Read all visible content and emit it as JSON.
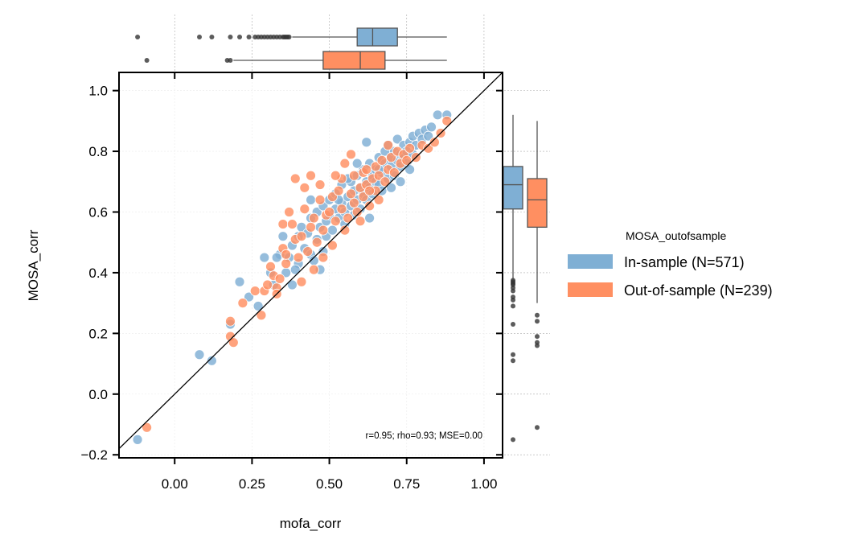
{
  "chart_data": {
    "type": "scatter",
    "xlabel": "mofa_corr",
    "ylabel": "MOSA_corr",
    "xlim": [
      -0.18,
      1.06
    ],
    "ylim": [
      -0.21,
      1.06
    ],
    "x_ticks": [
      0.0,
      0.25,
      0.5,
      0.75,
      1.0
    ],
    "x_tick_labels": [
      "0.00",
      "0.25",
      "0.50",
      "0.75",
      "1.00"
    ],
    "y_ticks": [
      -0.2,
      0.0,
      0.2,
      0.4,
      0.6,
      0.8,
      1.0
    ],
    "y_tick_labels": [
      "−0.2",
      "0.0",
      "0.2",
      "0.4",
      "0.6",
      "0.8",
      "1.0"
    ],
    "grid": true,
    "identity_line": true,
    "annotation": "r=0.95; rho=0.93; MSE=0.00",
    "legend": {
      "title": "MOSA_outofsample",
      "placement": "right"
    },
    "series": [
      {
        "name": "In-sample (N=571)",
        "color": "#7FAFD4",
        "n": 571,
        "points": [
          [
            -0.12,
            -0.15
          ],
          [
            0.08,
            0.13
          ],
          [
            0.12,
            0.11
          ],
          [
            0.18,
            0.23
          ],
          [
            0.21,
            0.37
          ],
          [
            0.24,
            0.32
          ],
          [
            0.27,
            0.29
          ],
          [
            0.29,
            0.45
          ],
          [
            0.31,
            0.4
          ],
          [
            0.32,
            0.36
          ],
          [
            0.34,
            0.46
          ],
          [
            0.35,
            0.52
          ],
          [
            0.36,
            0.4
          ],
          [
            0.37,
            0.45
          ],
          [
            0.38,
            0.49
          ],
          [
            0.38,
            0.36
          ],
          [
            0.4,
            0.43
          ],
          [
            0.4,
            0.52
          ],
          [
            0.41,
            0.55
          ],
          [
            0.42,
            0.48
          ],
          [
            0.43,
            0.53
          ],
          [
            0.44,
            0.46
          ],
          [
            0.44,
            0.58
          ],
          [
            0.45,
            0.44
          ],
          [
            0.46,
            0.51
          ],
          [
            0.46,
            0.6
          ],
          [
            0.47,
            0.55
          ],
          [
            0.48,
            0.47
          ],
          [
            0.48,
            0.62
          ],
          [
            0.49,
            0.52
          ],
          [
            0.49,
            0.57
          ],
          [
            0.5,
            0.59
          ],
          [
            0.5,
            0.64
          ],
          [
            0.51,
            0.54
          ],
          [
            0.52,
            0.61
          ],
          [
            0.52,
            0.66
          ],
          [
            0.53,
            0.58
          ],
          [
            0.54,
            0.63
          ],
          [
            0.54,
            0.69
          ],
          [
            0.55,
            0.6
          ],
          [
            0.55,
            0.56
          ],
          [
            0.56,
            0.65
          ],
          [
            0.57,
            0.62
          ],
          [
            0.57,
            0.7
          ],
          [
            0.58,
            0.67
          ],
          [
            0.58,
            0.59
          ],
          [
            0.59,
            0.72
          ],
          [
            0.59,
            0.64
          ],
          [
            0.6,
            0.68
          ],
          [
            0.6,
            0.61
          ],
          [
            0.61,
            0.66
          ],
          [
            0.61,
            0.74
          ],
          [
            0.62,
            0.7
          ],
          [
            0.62,
            0.64
          ],
          [
            0.63,
            0.76
          ],
          [
            0.63,
            0.68
          ],
          [
            0.64,
            0.72
          ],
          [
            0.64,
            0.66
          ],
          [
            0.65,
            0.74
          ],
          [
            0.65,
            0.7
          ],
          [
            0.66,
            0.78
          ],
          [
            0.66,
            0.69
          ],
          [
            0.67,
            0.73
          ],
          [
            0.67,
            0.67
          ],
          [
            0.68,
            0.8
          ],
          [
            0.68,
            0.76
          ],
          [
            0.69,
            0.71
          ],
          [
            0.69,
            0.82
          ],
          [
            0.7,
            0.75
          ],
          [
            0.7,
            0.78
          ],
          [
            0.71,
            0.72
          ],
          [
            0.71,
            0.8
          ],
          [
            0.72,
            0.77
          ],
          [
            0.72,
            0.84
          ],
          [
            0.73,
            0.79
          ],
          [
            0.73,
            0.75
          ],
          [
            0.74,
            0.82
          ],
          [
            0.74,
            0.78
          ],
          [
            0.75,
            0.8
          ],
          [
            0.75,
            0.76
          ],
          [
            0.76,
            0.83
          ],
          [
            0.77,
            0.79
          ],
          [
            0.77,
            0.85
          ],
          [
            0.78,
            0.82
          ],
          [
            0.79,
            0.86
          ],
          [
            0.8,
            0.84
          ],
          [
            0.81,
            0.87
          ],
          [
            0.82,
            0.85
          ],
          [
            0.83,
            0.88
          ],
          [
            0.85,
            0.92
          ],
          [
            0.88,
            0.92
          ],
          [
            0.53,
            0.64
          ],
          [
            0.56,
            0.71
          ],
          [
            0.59,
            0.76
          ],
          [
            0.62,
            0.83
          ],
          [
            0.66,
            0.74
          ],
          [
            0.7,
            0.68
          ],
          [
            0.73,
            0.7
          ],
          [
            0.76,
            0.74
          ],
          [
            0.63,
            0.58
          ],
          [
            0.44,
            0.64
          ],
          [
            0.47,
            0.41
          ],
          [
            0.39,
            0.41
          ],
          [
            0.33,
            0.45
          ]
        ]
      },
      {
        "name": "Out-of-sample (N=239)",
        "color": "#FF8F61",
        "n": 239,
        "points": [
          [
            -0.09,
            -0.11
          ],
          [
            0.18,
            0.19
          ],
          [
            0.18,
            0.24
          ],
          [
            0.19,
            0.17
          ],
          [
            0.22,
            0.3
          ],
          [
            0.26,
            0.34
          ],
          [
            0.28,
            0.26
          ],
          [
            0.29,
            0.34
          ],
          [
            0.3,
            0.36
          ],
          [
            0.31,
            0.42
          ],
          [
            0.32,
            0.39
          ],
          [
            0.33,
            0.35
          ],
          [
            0.33,
            0.33
          ],
          [
            0.34,
            0.38
          ],
          [
            0.35,
            0.48
          ],
          [
            0.35,
            0.56
          ],
          [
            0.36,
            0.43
          ],
          [
            0.37,
            0.6
          ],
          [
            0.38,
            0.56
          ],
          [
            0.39,
            0.51
          ],
          [
            0.39,
            0.71
          ],
          [
            0.4,
            0.45
          ],
          [
            0.41,
            0.52
          ],
          [
            0.42,
            0.61
          ],
          [
            0.42,
            0.68
          ],
          [
            0.43,
            0.47
          ],
          [
            0.44,
            0.55
          ],
          [
            0.44,
            0.72
          ],
          [
            0.45,
            0.58
          ],
          [
            0.46,
            0.5
          ],
          [
            0.47,
            0.64
          ],
          [
            0.47,
            0.69
          ],
          [
            0.48,
            0.54
          ],
          [
            0.49,
            0.59
          ],
          [
            0.5,
            0.6
          ],
          [
            0.51,
            0.49
          ],
          [
            0.51,
            0.65
          ],
          [
            0.52,
            0.57
          ],
          [
            0.53,
            0.67
          ],
          [
            0.54,
            0.61
          ],
          [
            0.54,
            0.71
          ],
          [
            0.55,
            0.76
          ],
          [
            0.56,
            0.58
          ],
          [
            0.57,
            0.66
          ],
          [
            0.58,
            0.63
          ],
          [
            0.58,
            0.72
          ],
          [
            0.59,
            0.6
          ],
          [
            0.6,
            0.68
          ],
          [
            0.61,
            0.65
          ],
          [
            0.61,
            0.73
          ],
          [
            0.62,
            0.69
          ],
          [
            0.63,
            0.62
          ],
          [
            0.64,
            0.71
          ],
          [
            0.65,
            0.67
          ],
          [
            0.65,
            0.75
          ],
          [
            0.66,
            0.72
          ],
          [
            0.67,
            0.77
          ],
          [
            0.68,
            0.7
          ],
          [
            0.69,
            0.74
          ],
          [
            0.7,
            0.78
          ],
          [
            0.71,
            0.73
          ],
          [
            0.72,
            0.8
          ],
          [
            0.73,
            0.76
          ],
          [
            0.74,
            0.79
          ],
          [
            0.75,
            0.77
          ],
          [
            0.76,
            0.81
          ],
          [
            0.78,
            0.78
          ],
          [
            0.8,
            0.82
          ],
          [
            0.82,
            0.81
          ],
          [
            0.84,
            0.83
          ],
          [
            0.86,
            0.86
          ],
          [
            0.88,
            0.9
          ],
          [
            0.55,
            0.54
          ],
          [
            0.6,
            0.57
          ],
          [
            0.63,
            0.67
          ],
          [
            0.66,
            0.64
          ],
          [
            0.69,
            0.82
          ],
          [
            0.45,
            0.41
          ],
          [
            0.48,
            0.45
          ],
          [
            0.41,
            0.37
          ],
          [
            0.36,
            0.46
          ],
          [
            0.52,
            0.72
          ],
          [
            0.57,
            0.79
          ],
          [
            0.62,
            0.74
          ]
        ]
      }
    ],
    "top_marginal_boxplots": [
      {
        "series": "In-sample (N=571)",
        "q1": 0.59,
        "median": 0.64,
        "q3": 0.72,
        "whisker_low": 0.38,
        "whisker_high": 0.88,
        "outliers": [
          -0.12,
          0.08,
          0.12,
          0.18,
          0.21,
          0.24,
          0.26,
          0.27,
          0.28,
          0.29,
          0.3,
          0.31,
          0.32,
          0.33,
          0.34,
          0.35,
          0.355,
          0.36,
          0.365,
          0.37
        ]
      },
      {
        "series": "Out-of-sample (N=239)",
        "q1": 0.48,
        "median": 0.6,
        "q3": 0.68,
        "whisker_low": 0.19,
        "whisker_high": 0.88,
        "outliers": [
          -0.09,
          0.17,
          0.18
        ]
      }
    ],
    "right_marginal_boxplots": [
      {
        "series": "In-sample (N=571)",
        "q1": 0.61,
        "median": 0.69,
        "q3": 0.75,
        "whisker_low": 0.38,
        "whisker_high": 0.92,
        "outliers": [
          -0.15,
          0.11,
          0.13,
          0.23,
          0.29,
          0.31,
          0.32,
          0.34,
          0.35,
          0.36,
          0.365,
          0.37,
          0.375
        ]
      },
      {
        "series": "Out-of-sample (N=239)",
        "q1": 0.55,
        "median": 0.64,
        "q3": 0.71,
        "whisker_low": 0.3,
        "whisker_high": 0.9,
        "outliers": [
          -0.11,
          0.16,
          0.17,
          0.19,
          0.24,
          0.26
        ]
      }
    ]
  }
}
